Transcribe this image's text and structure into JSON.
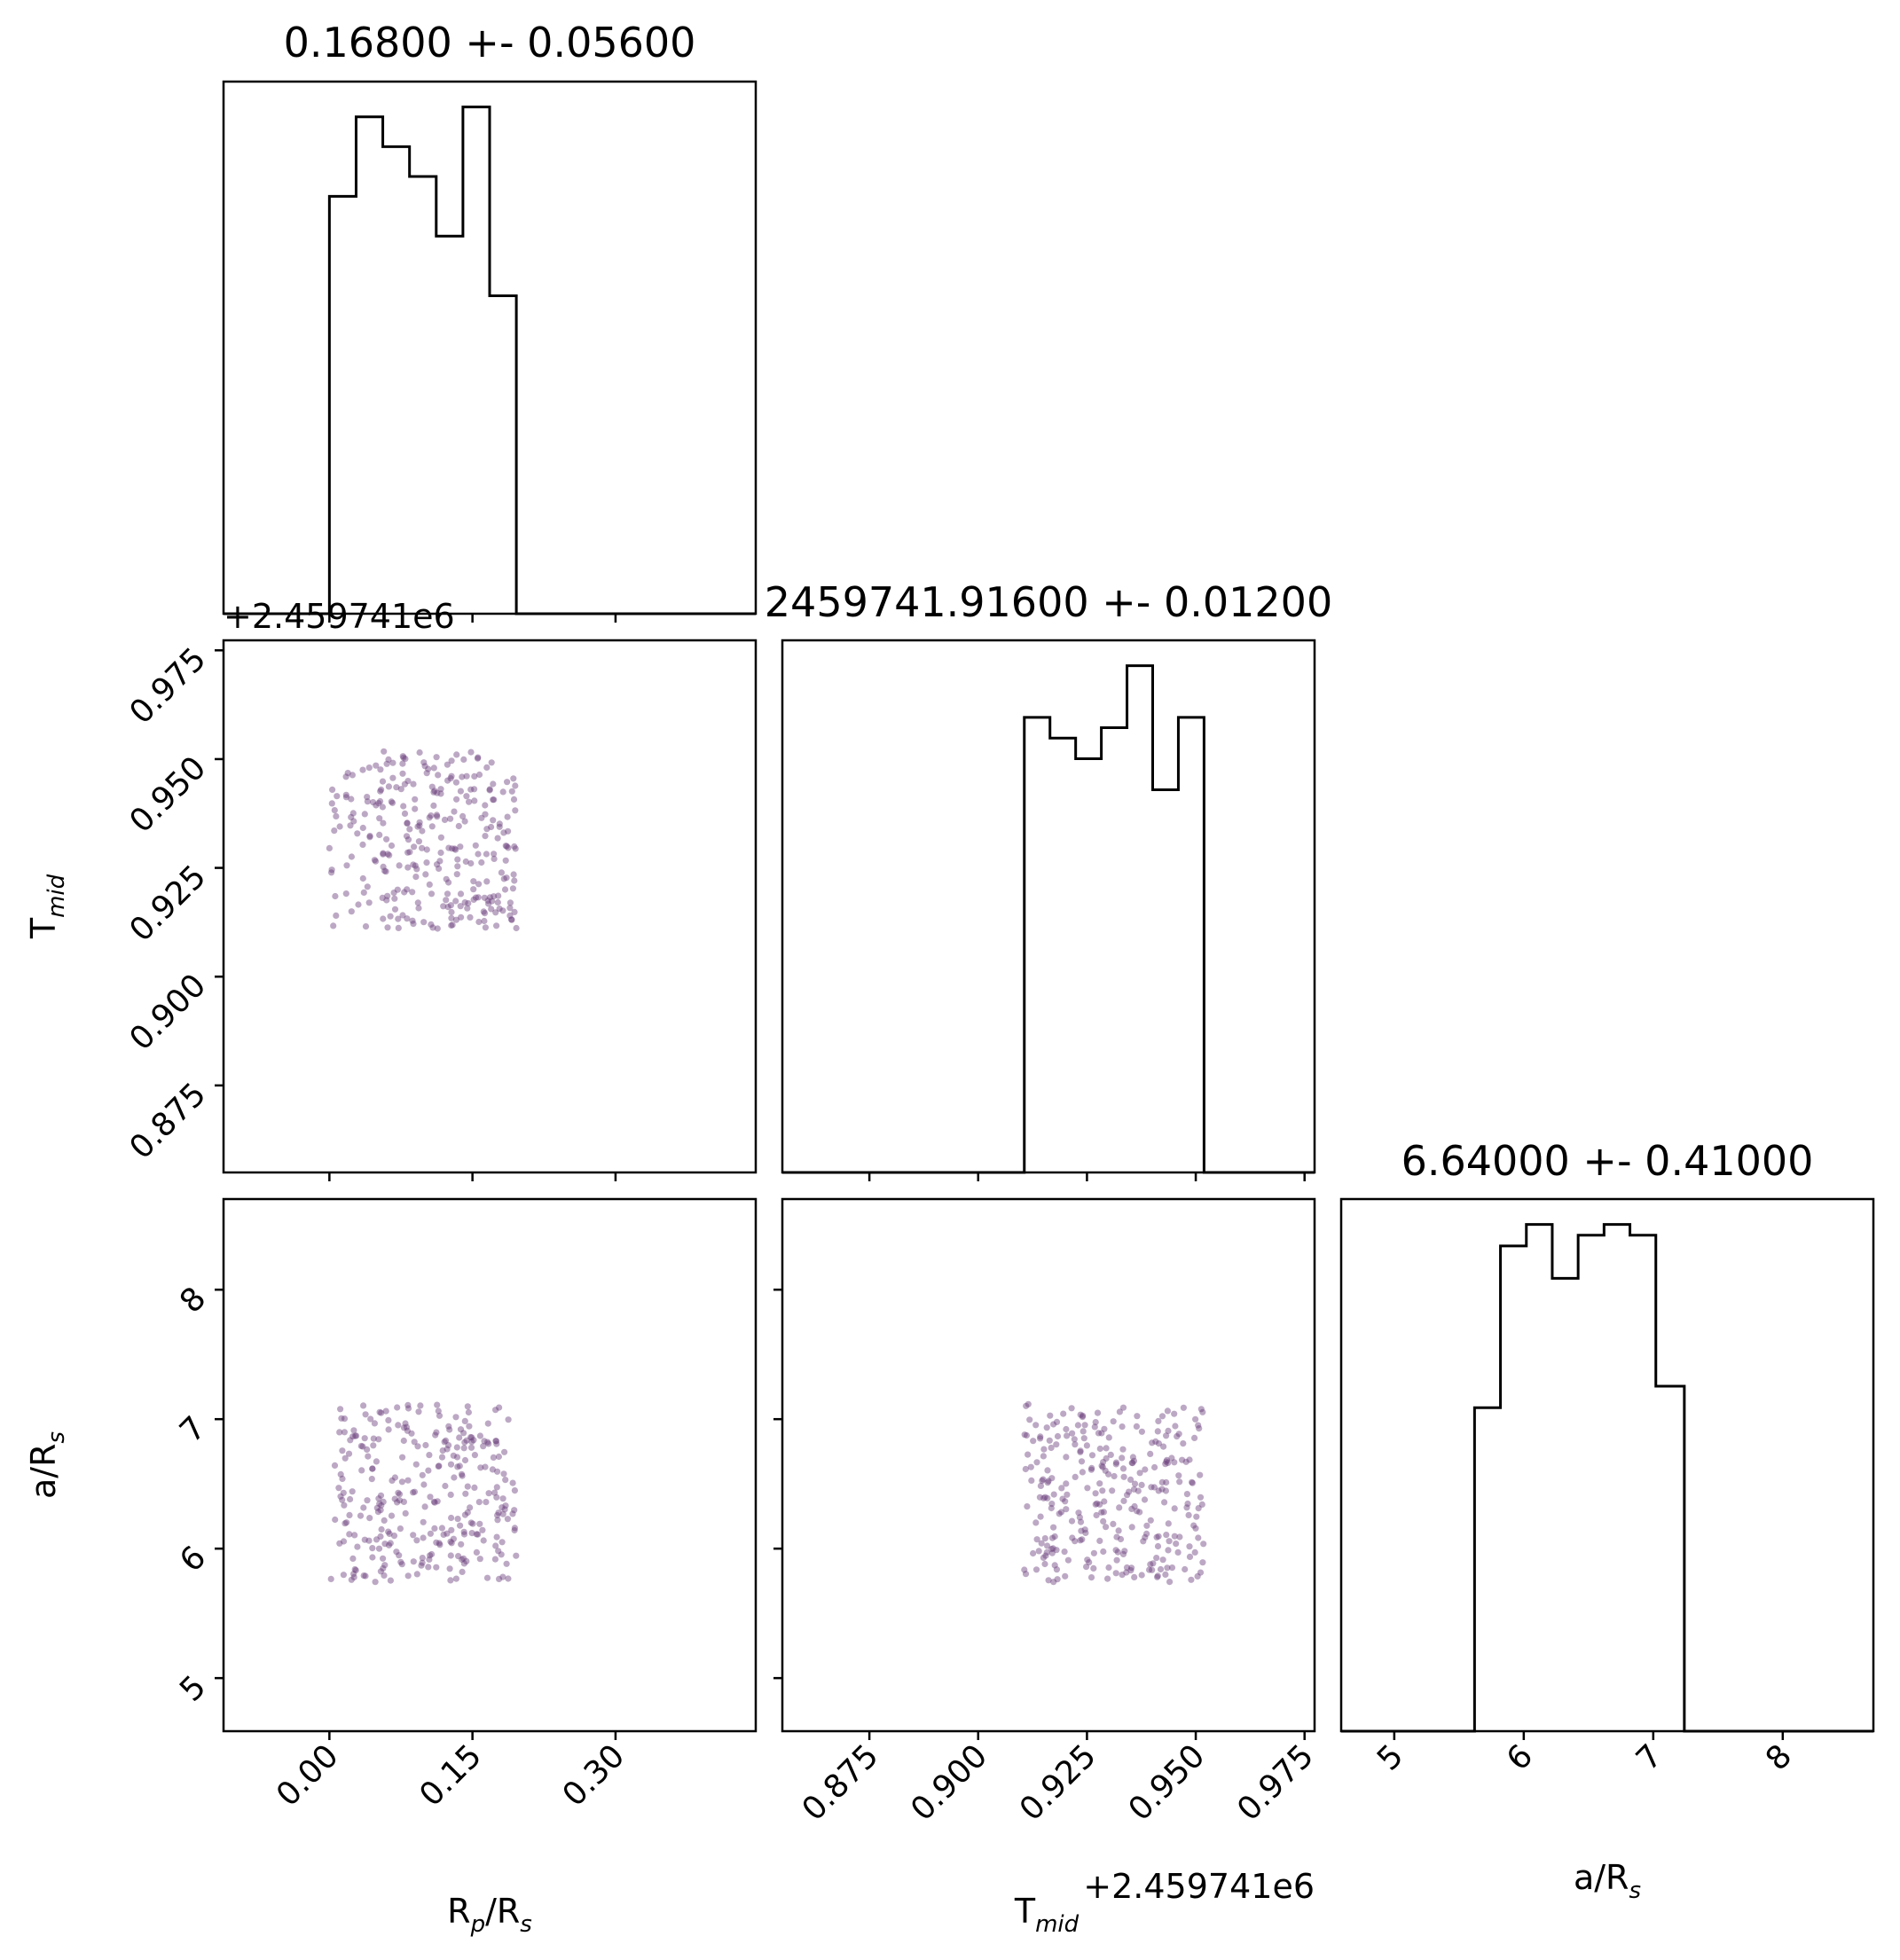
{
  "chart_data": [
    {
      "type": "histogram",
      "panel": "Rp/Rs marginal",
      "title": "0.16800 +- 0.05600",
      "xlim": [
        -0.111,
        0.447
      ],
      "bin_edges": [
        0.0,
        0.028,
        0.056,
        0.084,
        0.112,
        0.14,
        0.168,
        0.196
      ],
      "counts": [
        42,
        50,
        47,
        44,
        38,
        51,
        32
      ]
    },
    {
      "type": "scatter",
      "panel": "Tmid vs Rp/Rs",
      "xlim": [
        -0.111,
        0.447
      ],
      "ylim": [
        0.855,
        0.9773
      ],
      "y_offset_label": "+2.459741e6",
      "x_range": [
        0.0,
        0.196
      ],
      "y_range": [
        0.911,
        0.952
      ],
      "n_points": 300
    },
    {
      "type": "histogram",
      "panel": "Tmid marginal",
      "title": "2459741.91600 +- 0.01200",
      "xlim": [
        0.855,
        0.9773
      ],
      "bin_edges": [
        0.9106,
        0.9165,
        0.9224,
        0.9283,
        0.9342,
        0.9401,
        0.946,
        0.9519
      ],
      "counts": [
        44,
        42,
        40,
        43,
        49,
        37,
        44
      ]
    },
    {
      "type": "scatter",
      "panel": "a/Rs vs Rp/Rs",
      "xlim": [
        -0.111,
        0.447
      ],
      "ylim": [
        4.59,
        8.7
      ],
      "x_range": [
        0.0,
        0.196
      ],
      "y_range": [
        5.74,
        7.12
      ],
      "n_points": 300
    },
    {
      "type": "scatter",
      "panel": "a/Rs vs Tmid",
      "xlim": [
        0.855,
        0.9773
      ],
      "ylim": [
        4.59,
        8.7
      ],
      "x_range": [
        0.9106,
        0.9519
      ],
      "y_range": [
        5.74,
        7.12
      ],
      "n_points": 300
    },
    {
      "type": "histogram",
      "panel": "a/Rs marginal",
      "title": "6.64000 +- 0.41000",
      "xlim": [
        4.59,
        8.7
      ],
      "bin_edges": [
        5.62,
        5.82,
        6.02,
        6.22,
        6.42,
        6.62,
        6.82,
        7.02,
        7.24
      ],
      "counts": [
        30,
        45,
        47,
        42,
        46,
        47,
        46,
        32
      ]
    }
  ],
  "axes": {
    "rp_ticks": [
      "0.00",
      "0.15",
      "0.30"
    ],
    "rp_tick_values": [
      0.0,
      0.15,
      0.3
    ],
    "tmid_ticks": [
      "0.875",
      "0.900",
      "0.925",
      "0.950",
      "0.975"
    ],
    "tmid_tick_values": [
      0.875,
      0.9,
      0.925,
      0.95,
      0.975
    ],
    "ars_ticks": [
      "5",
      "6",
      "7",
      "8"
    ],
    "ars_tick_values": [
      5,
      6,
      7,
      8
    ],
    "offset_text": "+2.459741e6"
  },
  "labels": {
    "rp_main": "R",
    "rp_sub": "p",
    "rp_rest": "/R",
    "rp_sub2": "s",
    "tmid_main": "T",
    "tmid_sub": "mid",
    "ars_main": "a/R",
    "ars_sub": "s"
  },
  "colors": {
    "hist_line": "#000000",
    "scatter_point": "#6a3d7c",
    "axis": "#000000"
  }
}
